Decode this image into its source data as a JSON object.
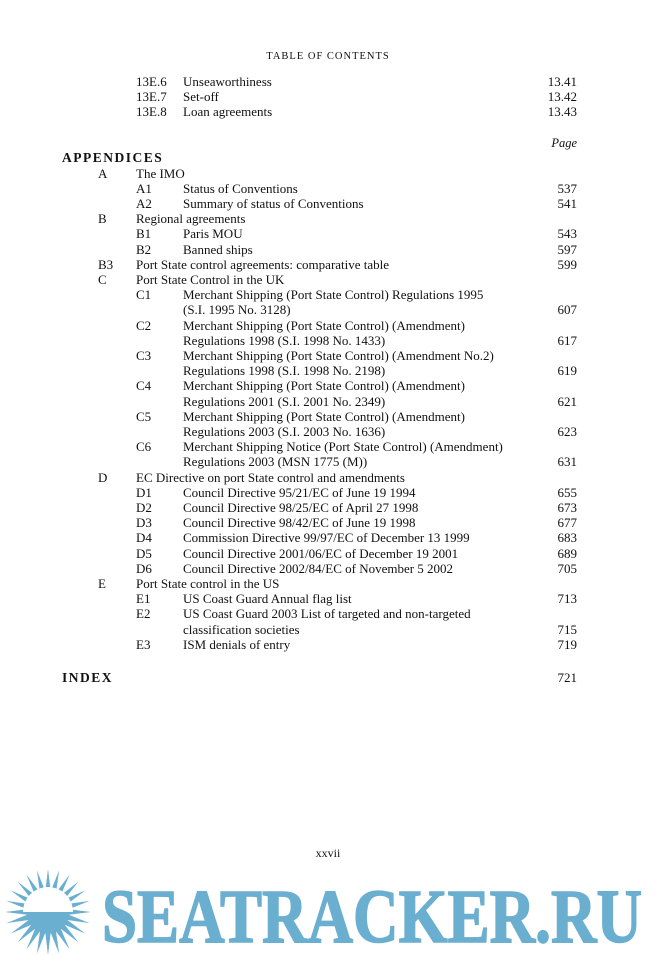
{
  "header": "TABLE OF CONTENTS",
  "page_label": "Page",
  "folio": "xxvii",
  "watermark": "SEATRACKER.RU",
  "colors": {
    "watermark": "#6aaed0"
  },
  "top_entries": [
    {
      "code": "13E.6",
      "title": "Unseaworthiness",
      "page": "13.41"
    },
    {
      "code": "13E.7",
      "title": "Set-off",
      "page": "13.42"
    },
    {
      "code": "13E.8",
      "title": "Loan agreements",
      "page": "13.43"
    }
  ],
  "appendices_heading": "APPENDICES",
  "appendices": [
    {
      "letter": "A",
      "title": "The IMO"
    },
    {
      "code": "A1",
      "title": "Status of Conventions",
      "page": "537"
    },
    {
      "code": "A2",
      "title": "Summary of status of Conventions",
      "page": "541"
    },
    {
      "letter": "B",
      "title": "Regional agreements"
    },
    {
      "code": "B1",
      "title": "Paris MOU",
      "page": "543"
    },
    {
      "code": "B2",
      "title": "Banned ships",
      "page": "597"
    },
    {
      "letter": "B3",
      "title": "Port State control agreements: comparative table",
      "page": "599"
    },
    {
      "letter": "C",
      "title": "Port State Control in the UK"
    },
    {
      "code": "C1",
      "title": [
        "Merchant Shipping (Port State Control) Regulations 1995",
        "(S.I. 1995 No. 3128)"
      ],
      "page": "607"
    },
    {
      "code": "C2",
      "title": [
        "Merchant Shipping (Port State Control) (Amendment)",
        "Regulations 1998 (S.I. 1998 No. 1433)"
      ],
      "page": "617"
    },
    {
      "code": "C3",
      "title": [
        "Merchant Shipping (Port State Control) (Amendment No.2)",
        "Regulations 1998 (S.I. 1998 No. 2198)"
      ],
      "page": "619"
    },
    {
      "code": "C4",
      "title": [
        "Merchant Shipping (Port State Control) (Amendment)",
        "Regulations 2001 (S.I. 2001 No. 2349)"
      ],
      "page": "621"
    },
    {
      "code": "C5",
      "title": [
        "Merchant Shipping (Port State Control) (Amendment)",
        "Regulations 2003 (S.I. 2003 No. 1636)"
      ],
      "page": "623"
    },
    {
      "code": "C6",
      "title": [
        "Merchant Shipping Notice (Port State Control) (Amendment)",
        "Regulations 2003 (MSN 1775 (M))"
      ],
      "page": "631"
    },
    {
      "letter": "D",
      "title": "EC Directive on port State control and amendments"
    },
    {
      "code": "D1",
      "title": "Council Directive 95/21/EC of June 19 1994",
      "page": "655"
    },
    {
      "code": "D2",
      "title": "Council Directive 98/25/EC of April 27 1998",
      "page": "673"
    },
    {
      "code": "D3",
      "title": "Council Directive 98/42/EC of June 19 1998",
      "page": "677"
    },
    {
      "code": "D4",
      "title": "Commission Directive 99/97/EC of December 13 1999",
      "page": "683"
    },
    {
      "code": "D5",
      "title": "Council Directive 2001/06/EC of December 19 2001",
      "page": "689"
    },
    {
      "code": "D6",
      "title": "Council Directive 2002/84/EC of November 5 2002",
      "page": "705"
    },
    {
      "letter": "E",
      "title": "Port State control in the US"
    },
    {
      "code": "E1",
      "title": "US Coast Guard Annual flag list",
      "page": "713"
    },
    {
      "code": "E2",
      "title": [
        "US Coast Guard 2003 List of targeted and non-targeted",
        "classification societies"
      ],
      "page": "715"
    },
    {
      "code": "E3",
      "title": "ISM denials of entry",
      "page": "719"
    }
  ],
  "index": {
    "label": "INDEX",
    "page": "721"
  }
}
